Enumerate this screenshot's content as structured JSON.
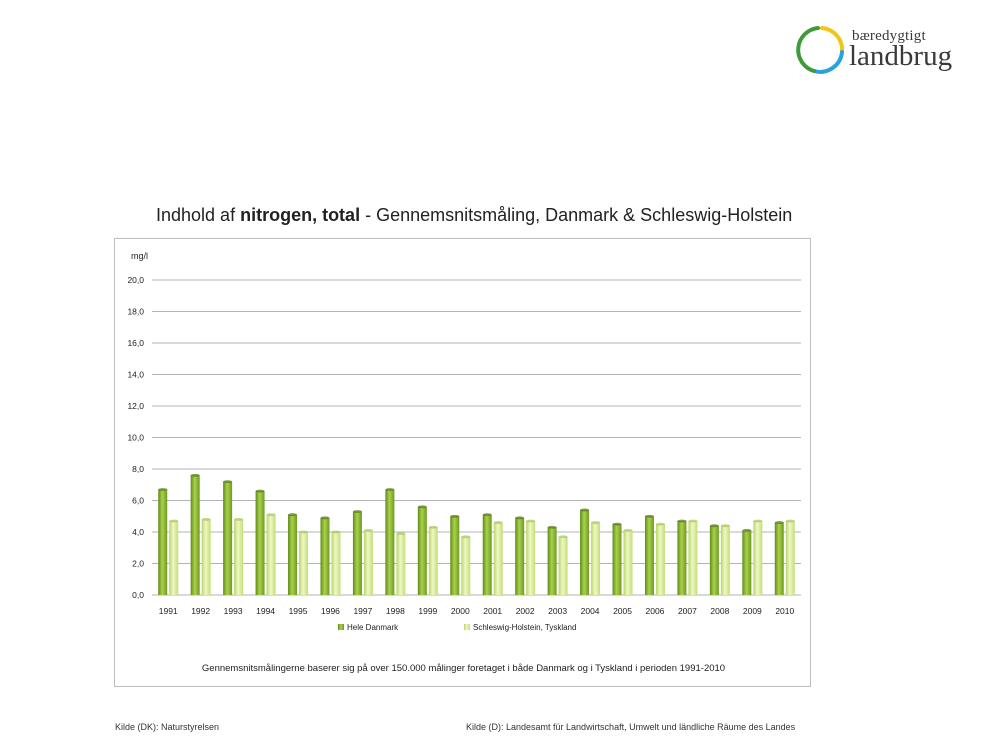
{
  "logo": {
    "line1": "bæredygtigt",
    "line2": "landbrug"
  },
  "title": {
    "part1": "Indhold af ",
    "part2": "nitrogen, total",
    "part3": " - Gennemsnitsmåling, Danmark & Schleswig-Holstein"
  },
  "colors": {
    "series1": "#8dba2f",
    "series2": "#d6ec8c",
    "gridline": "#9a9a9a"
  },
  "chart_data": {
    "type": "bar",
    "ylabel": "mg/l",
    "ylim": [
      0,
      20
    ],
    "yticks": [
      "0,0",
      "2,0",
      "4,0",
      "6,0",
      "8,0",
      "10,0",
      "12,0",
      "14,0",
      "16,0",
      "18,0",
      "20,0"
    ],
    "categories": [
      "1991",
      "1992",
      "1993",
      "1994",
      "1995",
      "1996",
      "1997",
      "1998",
      "1999",
      "2000",
      "2001",
      "2002",
      "2003",
      "2004",
      "2005",
      "2006",
      "2007",
      "2008",
      "2009",
      "2010"
    ],
    "series": [
      {
        "name": "Hele Danmark",
        "values": [
          6.7,
          7.6,
          7.2,
          6.6,
          5.1,
          4.9,
          5.3,
          6.7,
          5.6,
          5.0,
          5.1,
          4.9,
          4.3,
          5.4,
          4.5,
          5.0,
          4.7,
          4.4,
          4.1,
          4.6
        ]
      },
      {
        "name": "Schleswig-Holstein, Tyskland",
        "values": [
          4.7,
          4.8,
          4.8,
          5.1,
          4.0,
          4.0,
          4.1,
          3.9,
          4.3,
          3.7,
          4.6,
          4.7,
          3.7,
          4.6,
          4.1,
          4.5,
          4.7,
          4.4,
          4.7,
          4.7
        ]
      }
    ],
    "grid": true,
    "legend": "bottom"
  },
  "footnote": "Gennemsnitsmålingerne baserer sig på over 150.000 målinger foretaget i både Danmark og i Tyskland i perioden 1991-2010",
  "sources": {
    "left": "Kilde (DK): Naturstyrelsen",
    "right": "Kilde (D): Landesamt für Landwirtschaft, Umwelt und ländliche Räume des Landes"
  }
}
